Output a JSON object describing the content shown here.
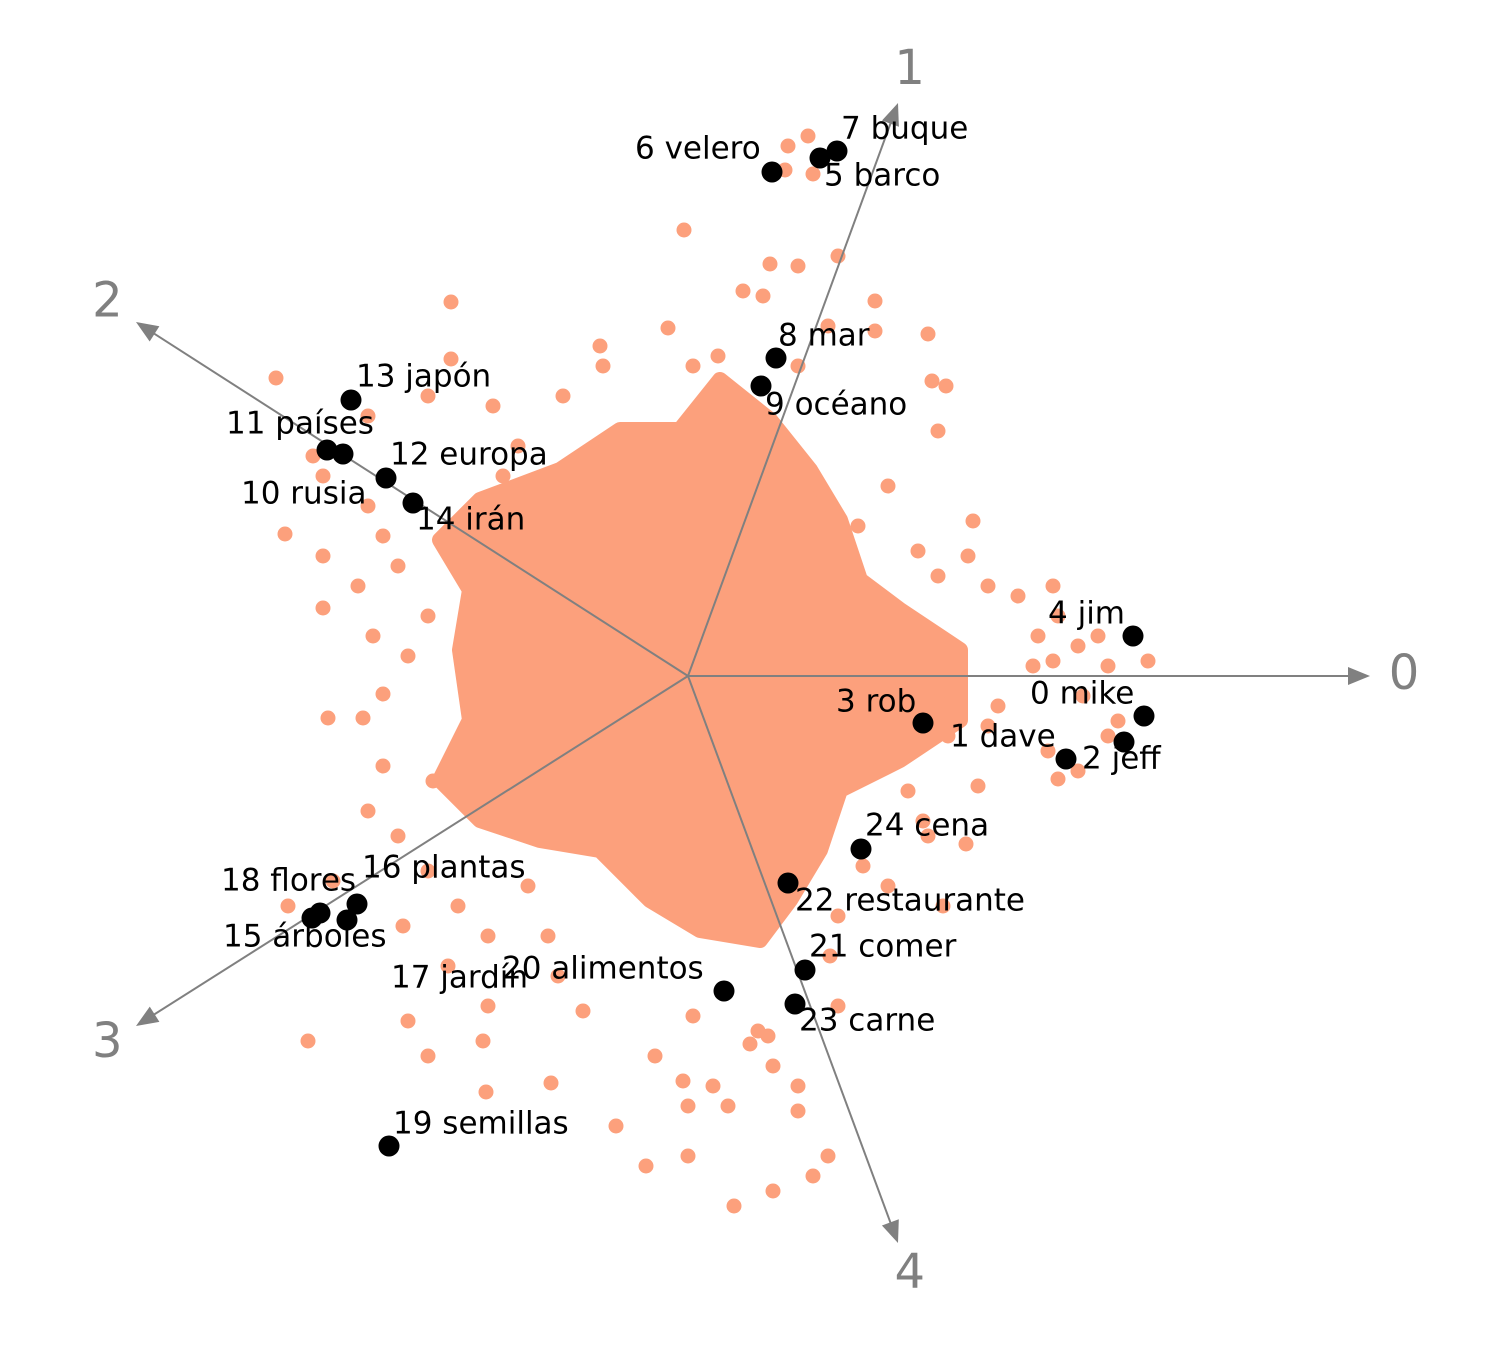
{
  "chart_data": {
    "type": "scatter",
    "xlim": [
      -6.88,
      8.12
    ],
    "ylim": [
      -6.74,
      6.76
    ],
    "axes": [
      {
        "label": "0",
        "end": [
          6.82,
          0
        ]
      },
      {
        "label": "1",
        "end": [
          2.1,
          5.73
        ]
      },
      {
        "label": "2",
        "end": [
          -5.52,
          3.54
        ]
      },
      {
        "label": "3",
        "end": [
          -5.52,
          -3.5
        ]
      },
      {
        "label": "4",
        "end": [
          2.1,
          -5.67
        ]
      }
    ],
    "background": {
      "color": "#fca07c",
      "dense_region": {
        "x": [
          -1.28,
          -0.68,
          -0.08,
          0.32,
          0.82,
          1.22,
          1.52,
          1.72,
          2.12,
          2.72,
          2.72,
          2.12,
          1.52,
          1.32,
          1.02,
          0.72,
          0.12,
          -0.38,
          -0.88,
          -1.48,
          -2.08,
          -2.48,
          -2.18,
          -2.28,
          -2.18,
          -2.48,
          -2.08
        ],
        "y": [
          2.06,
          2.46,
          2.46,
          2.96,
          2.56,
          2.06,
          1.56,
          0.96,
          0.66,
          0.26,
          -0.44,
          -0.84,
          -1.14,
          -1.74,
          -2.24,
          -2.64,
          -2.54,
          -2.24,
          -1.74,
          -1.64,
          -1.44,
          -1.04,
          -0.44,
          0.26,
          0.86,
          1.36,
          1.76
        ]
      },
      "x": [
        -0.04,
        0.82,
        1.1,
        1.5,
        1.87,
        0.55,
        0.75,
        1.4,
        1.87,
        2.4,
        2.44,
        2.58,
        2.5,
        1.1,
        0.3,
        -0.88,
        -0.2,
        0.05,
        1.2,
        1.0,
        1.25,
        0.97,
        -2.37,
        -4.12,
        -2.37,
        -3.2,
        -3.75,
        -3.2,
        -3.65,
        -3.05,
        -2.6,
        -1.95,
        -1.7,
        -1.25,
        -0.85,
        -4.03,
        -3.65,
        -3.3,
        -3.15,
        -2.6,
        -2.9,
        -3.65,
        -3.05,
        -2.8,
        -1.85,
        2.0,
        1.7,
        2.8,
        2.5,
        3.0,
        2.85,
        2.3,
        3.3,
        3.5,
        3.65,
        3.7,
        3.45,
        3.9,
        4.2,
        3.95,
        4.2,
        3.0,
        2.6,
        3.6,
        3.9,
        3.7,
        2.2,
        2.9,
        2.4,
        3.65,
        4.1,
        3.1,
        2.5,
        4.6,
        4.3,
        -3.25,
        -3.6,
        -3.05,
        -3.2,
        -2.55,
        -2.9,
        -2.6,
        -3.55,
        -4.0,
        -2.85,
        -2.3,
        -2.4,
        -2.0,
        -1.6,
        -1.4,
        -1.3,
        -2.8,
        -2.6,
        -3.8,
        -2.05,
        -2.02,
        -1.05,
        -1.37,
        -0.72,
        -0.42,
        -2.0,
        -0.33,
        0.05,
        -0.05,
        1.75,
        2.0,
        2.55,
        2.78,
        2.35,
        1.5,
        1.42,
        1.5,
        0.8,
        0.62,
        0.25,
        1.1,
        1.1,
        0.4,
        0.0,
        1.4,
        1.25,
        0.85,
        0.46,
        0.0,
        0.85,
        0.7
      ],
      "y": [
        4.46,
        4.12,
        4.1,
        4.2,
        3.75,
        3.85,
        3.8,
        3.5,
        3.45,
        3.42,
        2.95,
        2.9,
        2.45,
        3.1,
        3.2,
        3.3,
        3.48,
        3.1,
        5.4,
        5.3,
        5.02,
        5.06,
        3.74,
        2.98,
        3.17,
        2.6,
        2.2,
        1.7,
        2.0,
        1.4,
        2.8,
        2.7,
        2.3,
        2.8,
        3.1,
        1.42,
        1.2,
        0.9,
        0.4,
        0.6,
        1.1,
        0.68,
        -0.18,
        0.2,
        2.0,
        1.9,
        1.5,
        1.2,
        1.0,
        0.9,
        1.55,
        1.25,
        0.8,
        0.4,
        0.9,
        0.6,
        0.1,
        0.3,
        0.1,
        -0.2,
        -0.6,
        -0.5,
        -0.6,
        -0.75,
        -0.95,
        -1.03,
        -1.15,
        -1.1,
        -1.6,
        0.15,
        0.4,
        -0.3,
        -0.25,
        0.15,
        -0.45,
        -0.42,
        -0.42,
        -0.9,
        -1.35,
        -1.05,
        -1.6,
        -1.95,
        -2.05,
        -2.3,
        -2.5,
        -2.3,
        -2.9,
        -2.6,
        -2.1,
        -2.6,
        -3.0,
        -3.45,
        -3.8,
        -3.65,
        -3.65,
        -4.16,
        -3.35,
        -4.07,
        -4.5,
        -4.9,
        -3.3,
        -3.8,
        -3.4,
        -4.05,
        -1.9,
        -2.1,
        -2.3,
        -1.68,
        -1.45,
        -2.4,
        -2.8,
        -3.3,
        -3.6,
        -3.68,
        -4.1,
        -4.1,
        -4.35,
        -4.3,
        -4.8,
        -4.8,
        -5.0,
        -5.15,
        -5.3,
        -4.3,
        -3.9,
        -3.55
      ]
    },
    "highlighted": {
      "color": "#000000",
      "labels": [
        "0 mike",
        "1 dave",
        "2 jeff",
        "3 rob",
        "4 jim",
        "5 barco",
        "6 velero",
        "7 buque",
        "8 mar",
        "9 océano",
        "10 rusia",
        "11 países",
        "12 europa",
        "13 japón",
        "14 irán",
        "15 árboles",
        "16 plantas",
        "17 jardín",
        "18 flores",
        "19 semillas",
        "20 alimentos",
        "21 comer",
        "22 restaurante",
        "23 carne",
        "24 cena"
      ],
      "x": [
        4.56,
        4.36,
        3.78,
        2.35,
        4.45,
        1.32,
        0.84,
        1.49,
        0.88,
        0.73,
        -3.61,
        -3.45,
        -3.02,
        -3.37,
        -2.75,
        -3.76,
        -3.31,
        -3.41,
        -3.68,
        -2.99,
        0.36,
        1.17,
        1.0,
        1.07,
        1.73
      ],
      "y": [
        -0.4,
        -0.66,
        -0.83,
        -0.47,
        0.4,
        5.18,
        5.04,
        5.25,
        3.18,
        2.9,
        2.26,
        2.22,
        1.98,
        2.76,
        1.73,
        -2.42,
        -2.28,
        -2.44,
        -2.37,
        -4.7,
        -3.15,
        -2.94,
        -2.07,
        -3.28,
        -1.73
      ]
    }
  }
}
